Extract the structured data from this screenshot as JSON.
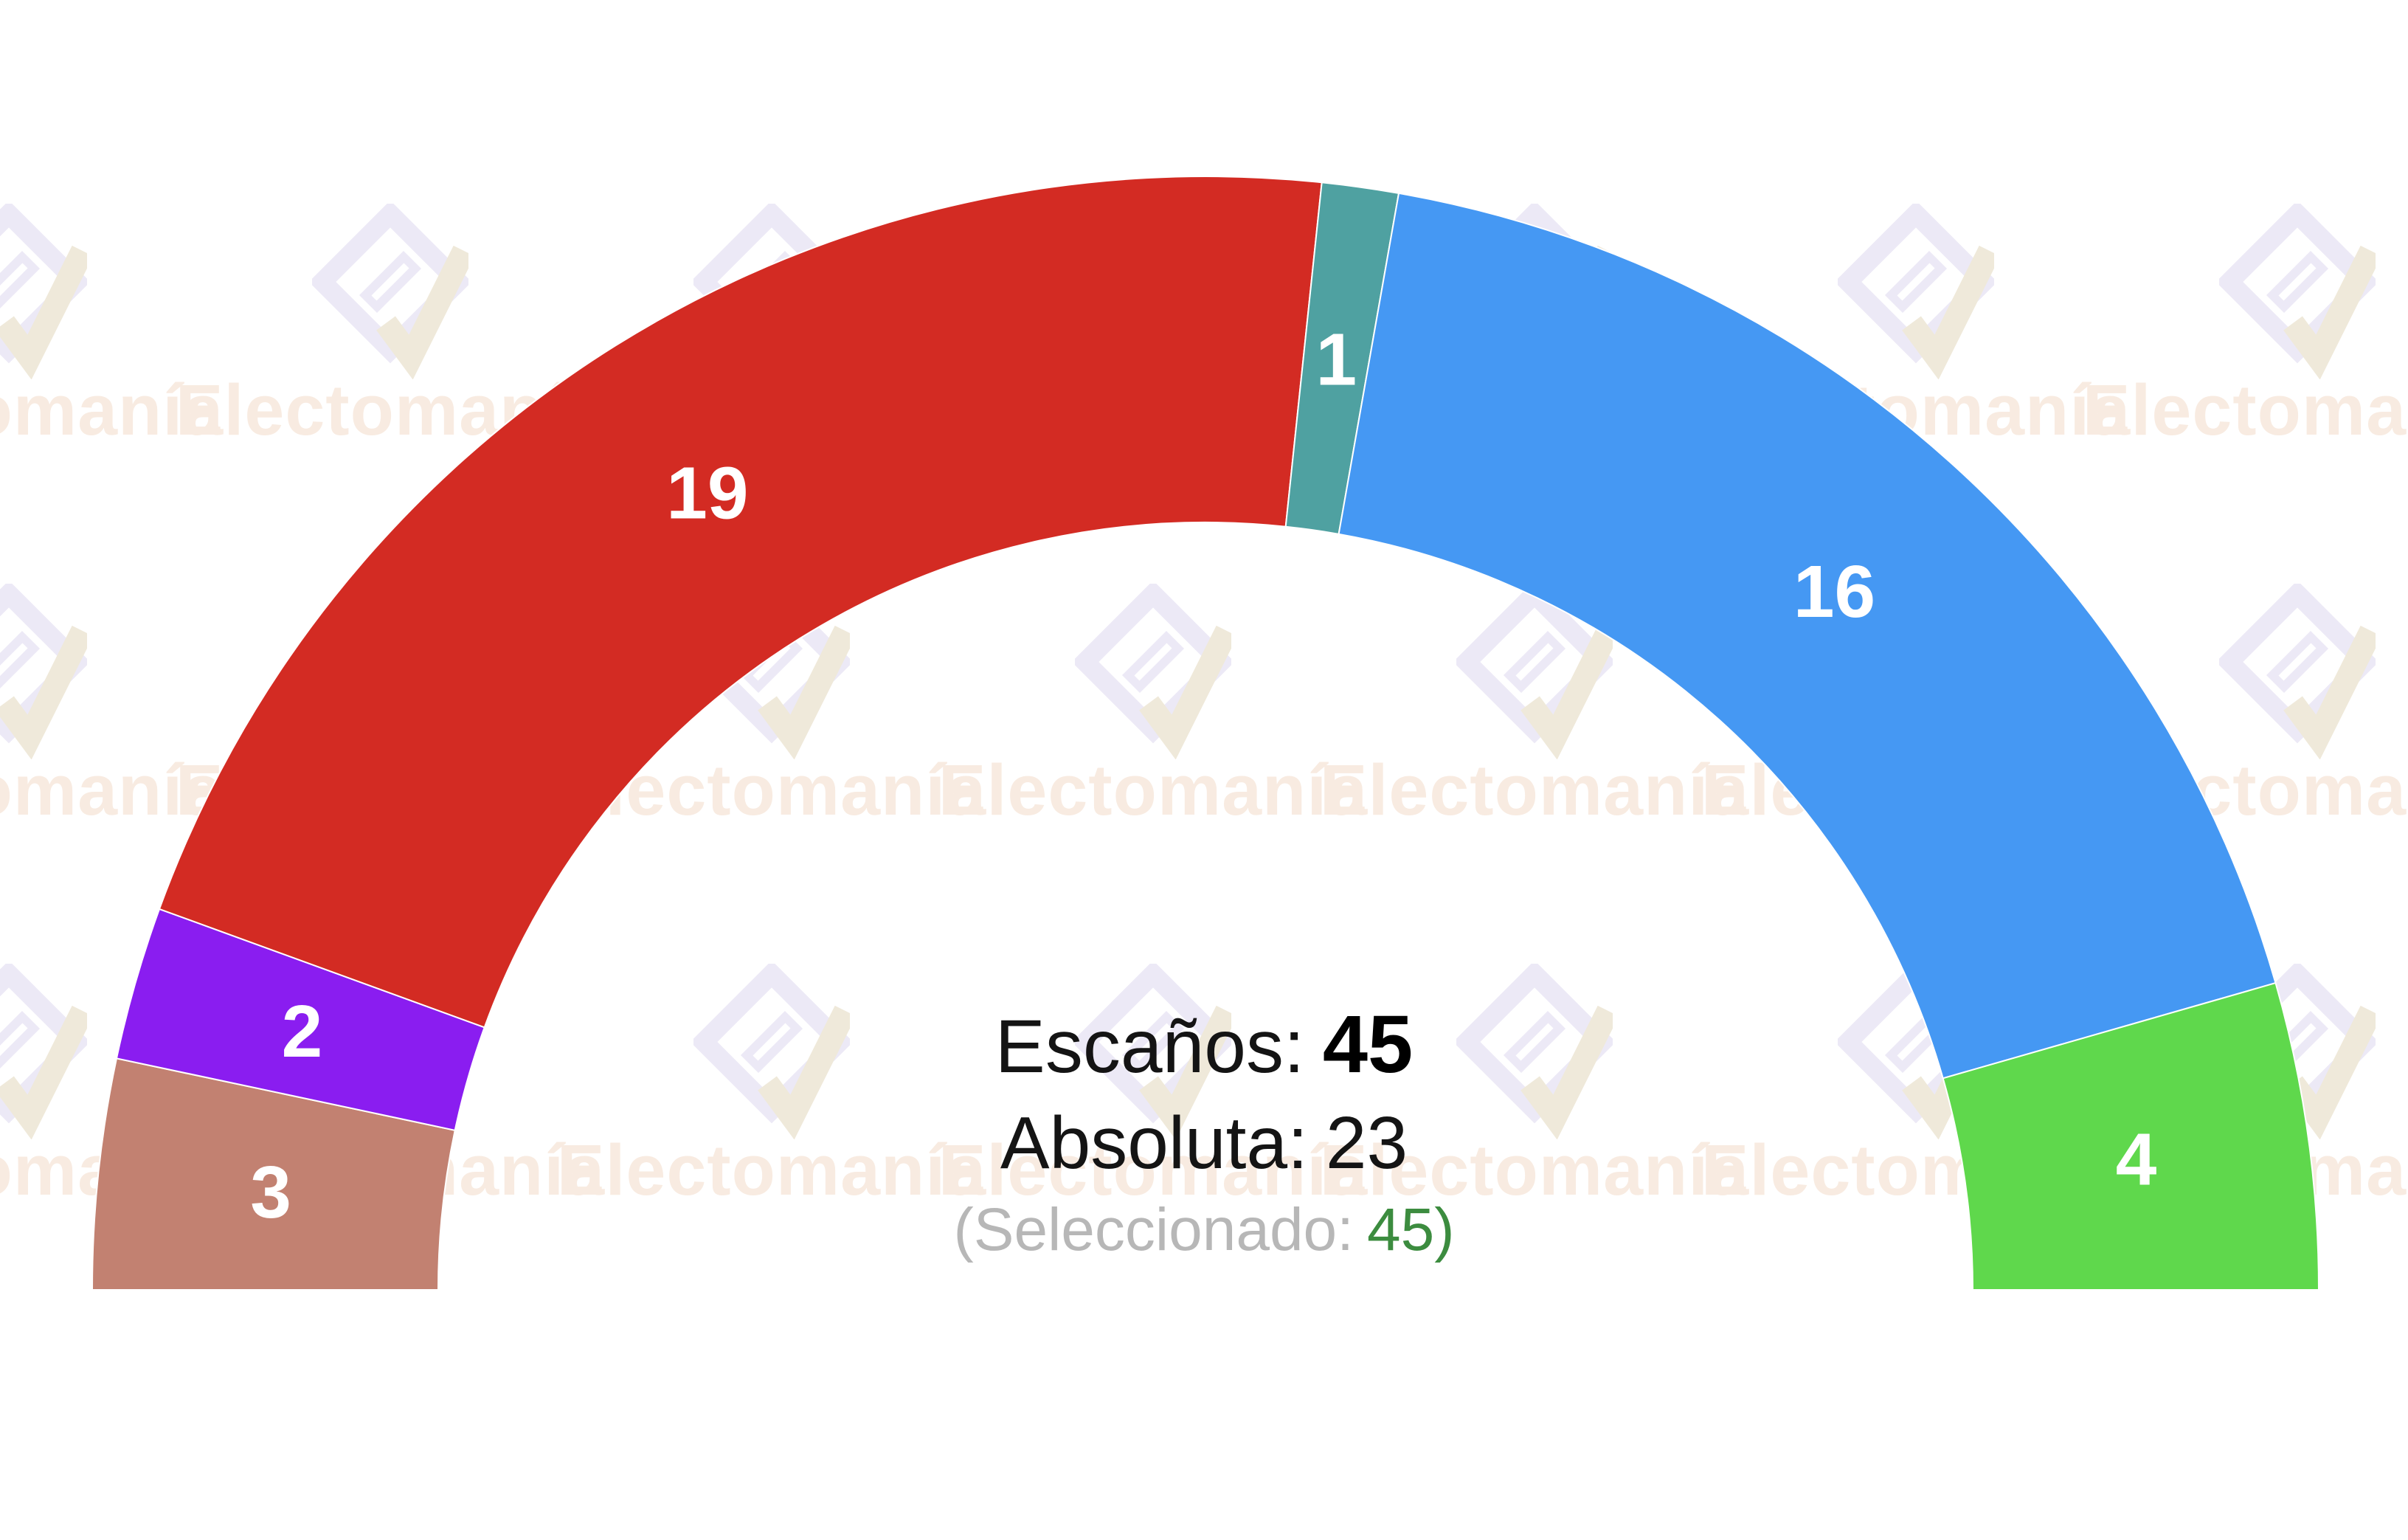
{
  "watermark": {
    "text": "Electomanía"
  },
  "center_panel": {
    "seats_label": "Escaños:",
    "seats_value": "45",
    "majority_label": "Absoluta:",
    "majority_value": "23",
    "selected_prefix": "(Seleccionado:",
    "selected_value": "45",
    "selected_suffix": ")"
  },
  "chart_data": {
    "type": "pie",
    "subtype": "half-donut-hemicycle",
    "title": "",
    "total_seats": 45,
    "majority_threshold": 23,
    "selected_seats": 45,
    "series": [
      {
        "label": "3",
        "value": 3,
        "color": "#c28171"
      },
      {
        "label": "2",
        "value": 2,
        "color": "#8a1df0"
      },
      {
        "label": "19",
        "value": 19,
        "color": "#d32b23"
      },
      {
        "label": "1",
        "value": 1,
        "color": "#4fa1a1"
      },
      {
        "label": "16",
        "value": 16,
        "color": "#4598f3"
      },
      {
        "label": "4",
        "value": 4,
        "color": "#5fd84c"
      }
    ],
    "layout": {
      "start_angle_deg": 180,
      "end_angle_deg": 0,
      "inner_radius_ratio": 0.69,
      "data_labels": "inside",
      "label_color": "#ffffff",
      "slice_border_color": "#ffffff",
      "legend": "none"
    }
  }
}
